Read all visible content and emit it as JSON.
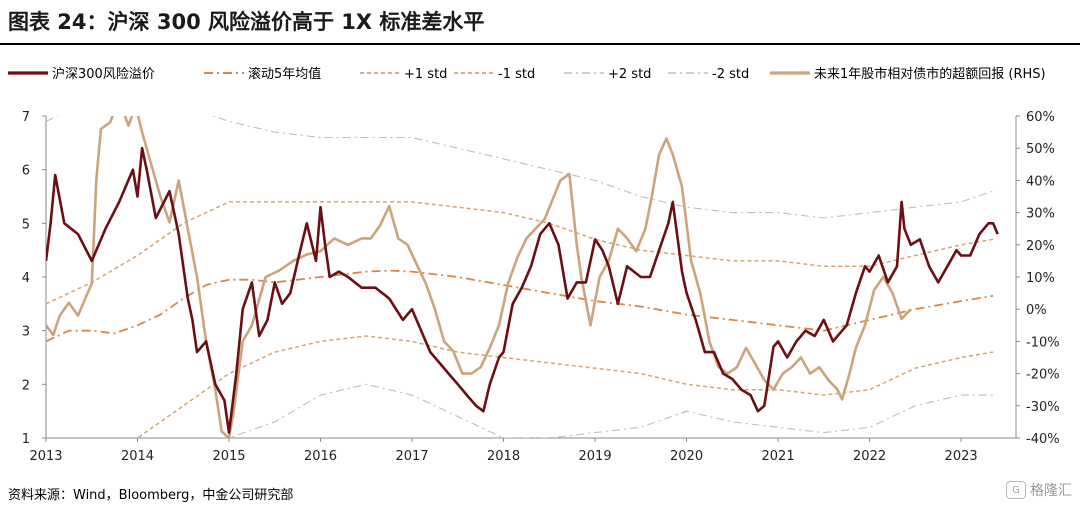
{
  "title": "图表 24：沪深 300 风险溢价高于 1X 标准差水平",
  "source": "资料来源：Wind，Bloomberg，中金公司研究部",
  "watermark": {
    "text": "格隆汇",
    "icon": "logo-g-icon"
  },
  "colors": {
    "erp": "#6b0f14",
    "rhs": "#caa47a",
    "ma5y": "#d8874a",
    "std1": "#d4a473",
    "std2": "#bdbdbd",
    "axis": "#555555"
  },
  "chart_data": {
    "type": "line",
    "legend_position": "top",
    "legend": [
      {
        "key": "erp",
        "label": "沪深300风险溢价"
      },
      {
        "key": "ma5y",
        "label": "滚动5年均值"
      },
      {
        "key": "p1",
        "label": "+1 std"
      },
      {
        "key": "m1",
        "label": "-1 std"
      },
      {
        "key": "p2",
        "label": "+2 std"
      },
      {
        "key": "m2",
        "label": "-2 std"
      },
      {
        "key": "rhs",
        "label": "未来1年股市相对债市的超额回报 (RHS)"
      }
    ],
    "x_ticks": [
      "2013",
      "2014",
      "2015",
      "2016",
      "2017",
      "2018",
      "2019",
      "2020",
      "2021",
      "2022",
      "2023"
    ],
    "y_left": {
      "min": 1,
      "max": 7,
      "ticks": [
        "1",
        "2",
        "3",
        "4",
        "5",
        "6",
        "7"
      ]
    },
    "y_right": {
      "min": -40,
      "max": 60,
      "ticks": [
        "-40%",
        "-30%",
        "-20%",
        "-10%",
        "0%",
        "10%",
        "20%",
        "30%",
        "40%",
        "50%",
        "60%"
      ]
    },
    "series": [
      {
        "name": "沪深300风险溢价",
        "key": "erp",
        "axis": "left",
        "x": [
          2013.0,
          2013.05,
          2013.1,
          2013.2,
          2013.35,
          2013.5,
          2013.65,
          2013.8,
          2013.95,
          2014.0,
          2014.05,
          2014.1,
          2014.2,
          2014.35,
          2014.45,
          2014.55,
          2014.6,
          2014.65,
          2014.75,
          2014.85,
          2014.95,
          2015.0,
          2015.08,
          2015.15,
          2015.25,
          2015.33,
          2015.42,
          2015.5,
          2015.58,
          2015.67,
          2015.75,
          2015.85,
          2015.95,
          2016.0,
          2016.05,
          2016.1,
          2016.2,
          2016.3,
          2016.45,
          2016.6,
          2016.75,
          2016.9,
          2017.0,
          2017.1,
          2017.2,
          2017.3,
          2017.4,
          2017.5,
          2017.6,
          2017.7,
          2017.78,
          2017.85,
          2017.95,
          2018.0,
          2018.1,
          2018.2,
          2018.3,
          2018.4,
          2018.5,
          2018.6,
          2018.7,
          2018.8,
          2018.9,
          2019.0,
          2019.08,
          2019.15,
          2019.25,
          2019.35,
          2019.5,
          2019.6,
          2019.7,
          2019.8,
          2019.85,
          2019.95,
          2020.0,
          2020.1,
          2020.2,
          2020.3,
          2020.4,
          2020.5,
          2020.6,
          2020.7,
          2020.78,
          2020.85,
          2020.95,
          2021.0,
          2021.1,
          2021.2,
          2021.3,
          2021.4,
          2021.5,
          2021.6,
          2021.7,
          2021.75,
          2021.85,
          2021.95,
          2022.0,
          2022.1,
          2022.2,
          2022.3,
          2022.35,
          2022.38,
          2022.45,
          2022.55,
          2022.65,
          2022.75,
          2022.85,
          2022.95,
          2023.0,
          2023.1,
          2023.2,
          2023.3,
          2023.35,
          2023.4
        ],
        "y": [
          4.3,
          5.0,
          5.9,
          5.0,
          4.8,
          4.3,
          4.9,
          5.4,
          6.0,
          5.5,
          6.4,
          6.0,
          5.1,
          5.6,
          4.8,
          3.6,
          3.2,
          2.6,
          2.8,
          2.0,
          1.7,
          1.1,
          2.2,
          3.4,
          3.9,
          2.9,
          3.2,
          3.9,
          3.5,
          3.7,
          4.3,
          5.0,
          4.3,
          5.3,
          4.6,
          4.0,
          4.1,
          4.0,
          3.8,
          3.8,
          3.6,
          3.2,
          3.4,
          3.0,
          2.6,
          2.4,
          2.2,
          2.0,
          1.8,
          1.6,
          1.5,
          2.0,
          2.5,
          2.6,
          3.5,
          3.8,
          4.2,
          4.8,
          5.0,
          4.6,
          3.6,
          3.9,
          3.9,
          4.7,
          4.5,
          4.2,
          3.5,
          4.2,
          4.0,
          4.0,
          4.5,
          5.0,
          5.4,
          4.1,
          3.7,
          3.2,
          2.6,
          2.6,
          2.2,
          2.1,
          1.9,
          1.8,
          1.5,
          1.6,
          2.7,
          2.8,
          2.5,
          2.8,
          3.0,
          2.9,
          3.2,
          2.8,
          3.0,
          3.1,
          3.7,
          4.2,
          4.1,
          4.4,
          3.9,
          4.2,
          5.4,
          4.9,
          4.6,
          4.7,
          4.2,
          3.9,
          4.2,
          4.5,
          4.4,
          4.4,
          4.8,
          5.0,
          5.0,
          4.8
        ],
        "color": "#6b0f14"
      },
      {
        "name": "未来1年股市相对债市的超额回报 (RHS)",
        "key": "rhs",
        "axis": "right",
        "x": [
          2013.0,
          2013.08,
          2013.15,
          2013.25,
          2013.35,
          2013.5,
          2013.55,
          2013.6,
          2013.7,
          2013.8,
          2013.9,
          2013.98,
          2014.05,
          2014.15,
          2014.25,
          2014.35,
          2014.45,
          2014.55,
          2014.65,
          2014.75,
          2014.85,
          2014.92,
          2015.0,
          2015.05,
          2015.15,
          2015.25,
          2015.4,
          2015.55,
          2015.7,
          2015.85,
          2016.0,
          2016.15,
          2016.3,
          2016.45,
          2016.55,
          2016.65,
          2016.75,
          2016.85,
          2016.95,
          2017.05,
          2017.15,
          2017.25,
          2017.35,
          2017.45,
          2017.55,
          2017.65,
          2017.75,
          2017.85,
          2017.95,
          2018.05,
          2018.15,
          2018.25,
          2018.35,
          2018.45,
          2018.55,
          2018.62,
          2018.72,
          2018.8,
          2018.85,
          2018.95,
          2019.05,
          2019.15,
          2019.25,
          2019.35,
          2019.45,
          2019.55,
          2019.62,
          2019.7,
          2019.78,
          2019.85,
          2019.95,
          2020.05,
          2020.15,
          2020.25,
          2020.35,
          2020.45,
          2020.55,
          2020.65,
          2020.75,
          2020.85,
          2020.95,
          2021.05,
          2021.15,
          2021.25,
          2021.35,
          2021.45,
          2021.55,
          2021.65,
          2021.7,
          2021.78,
          2021.85,
          2021.95,
          2022.05,
          2022.15,
          2022.25,
          2022.35,
          2022.45
        ],
        "y": [
          -5,
          -8,
          -2,
          2,
          -2,
          8,
          40,
          56,
          58,
          65,
          57,
          63,
          55,
          45,
          35,
          27,
          40,
          25,
          10,
          -10,
          -25,
          -38,
          -40,
          -32,
          -10,
          -5,
          10,
          12,
          15,
          17,
          18,
          22,
          20,
          22,
          22,
          26,
          32,
          22,
          20,
          14,
          8,
          0,
          -10,
          -13,
          -20,
          -20,
          -18,
          -12,
          -5,
          8,
          16,
          22,
          25,
          28,
          35,
          40,
          42,
          20,
          10,
          -5,
          10,
          15,
          25,
          22,
          18,
          25,
          35,
          48,
          53,
          48,
          38,
          15,
          5,
          -10,
          -18,
          -20,
          -18,
          -12,
          -17,
          -22,
          -25,
          -20,
          -18,
          -15,
          -20,
          -18,
          -22,
          -25,
          -28,
          -20,
          -12,
          -5,
          6,
          10,
          5,
          -3,
          0
        ],
        "color": "#caa47a"
      },
      {
        "name": "滚动5年均值",
        "key": "ma5y",
        "axis": "left",
        "x": [
          2013.0,
          2013.25,
          2013.5,
          2013.75,
          2014.0,
          2014.25,
          2014.5,
          2014.75,
          2015.0,
          2015.25,
          2015.5,
          2015.75,
          2016.0,
          2016.25,
          2016.5,
          2016.75,
          2017.0,
          2017.5,
          2018.0,
          2018.5,
          2019.0,
          2019.5,
          2020.0,
          2020.5,
          2021.0,
          2021.5,
          2022.0,
          2022.5,
          2023.0,
          2023.35
        ],
        "y": [
          2.8,
          3.0,
          3.0,
          2.95,
          3.1,
          3.3,
          3.6,
          3.85,
          3.95,
          3.95,
          3.9,
          3.95,
          4.0,
          4.05,
          4.1,
          4.12,
          4.1,
          4.0,
          3.85,
          3.7,
          3.55,
          3.45,
          3.3,
          3.2,
          3.1,
          3.0,
          3.2,
          3.4,
          3.55,
          3.65
        ],
        "color": "#d8874a"
      },
      {
        "name": "+1 std",
        "key": "p1",
        "axis": "left",
        "x": [
          2013.0,
          2013.5,
          2014.0,
          2014.5,
          2015.0,
          2015.5,
          2016.0,
          2016.5,
          2017.0,
          2017.5,
          2018.0,
          2018.5,
          2019.0,
          2019.5,
          2020.0,
          2020.5,
          2021.0,
          2021.5,
          2022.0,
          2022.5,
          2023.0,
          2023.35
        ],
        "y": [
          3.5,
          3.9,
          4.4,
          5.0,
          5.4,
          5.4,
          5.4,
          5.4,
          5.4,
          5.3,
          5.2,
          5.0,
          4.7,
          4.5,
          4.4,
          4.3,
          4.3,
          4.2,
          4.2,
          4.4,
          4.6,
          4.7
        ],
        "color": "#d4a473"
      },
      {
        "name": "-1 std",
        "key": "m1",
        "axis": "left",
        "x": [
          2013.0,
          2013.5,
          2014.0,
          2014.5,
          2015.0,
          2015.5,
          2016.0,
          2016.5,
          2017.0,
          2017.5,
          2018.0,
          2018.5,
          2019.0,
          2019.5,
          2020.0,
          2020.5,
          2021.0,
          2021.5,
          2022.0,
          2022.5,
          2023.0,
          2023.35
        ],
        "y": [
          0.5,
          0.6,
          1.0,
          1.6,
          2.2,
          2.6,
          2.8,
          2.9,
          2.8,
          2.6,
          2.5,
          2.4,
          2.3,
          2.2,
          2.0,
          1.9,
          1.9,
          1.8,
          1.9,
          2.3,
          2.5,
          2.6
        ],
        "color": "#d4a473"
      },
      {
        "name": "+2 std",
        "key": "p2",
        "axis": "left",
        "x": [
          2013.0,
          2013.5,
          2014.0,
          2014.5,
          2015.0,
          2015.5,
          2016.0,
          2016.5,
          2017.0,
          2017.5,
          2018.0,
          2018.5,
          2019.0,
          2019.5,
          2020.0,
          2020.5,
          2021.0,
          2021.5,
          2022.0,
          2022.5,
          2023.0,
          2023.35
        ],
        "y": [
          6.9,
          7.3,
          7.3,
          7.2,
          6.9,
          6.7,
          6.6,
          6.6,
          6.6,
          6.4,
          6.2,
          6.0,
          5.8,
          5.5,
          5.3,
          5.2,
          5.2,
          5.1,
          5.2,
          5.3,
          5.4,
          5.6
        ],
        "color": "#bdbdbd"
      },
      {
        "name": "-2 std",
        "key": "m2",
        "axis": "left",
        "x": [
          2013.0,
          2013.5,
          2014.0,
          2014.5,
          2015.0,
          2015.5,
          2016.0,
          2016.5,
          2017.0,
          2017.5,
          2018.0,
          2018.5,
          2019.0,
          2019.5,
          2020.0,
          2020.5,
          2021.0,
          2021.5,
          2022.0,
          2022.5,
          2023.0,
          2023.35
        ],
        "y": [
          0.2,
          0.5,
          0.6,
          0.8,
          1.0,
          1.3,
          1.8,
          2.0,
          1.8,
          1.4,
          1.0,
          1.0,
          1.1,
          1.2,
          1.5,
          1.3,
          1.2,
          1.1,
          1.2,
          1.6,
          1.8,
          1.8
        ],
        "color": "#bdbdbd"
      }
    ]
  }
}
